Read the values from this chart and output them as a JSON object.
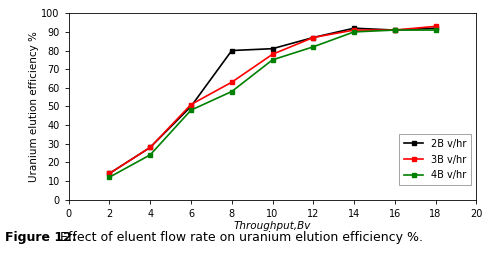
{
  "x": [
    2,
    4,
    6,
    8,
    10,
    12,
    14,
    16,
    18
  ],
  "series": [
    {
      "label": "2B v/hr",
      "color": "#000000",
      "y": [
        14,
        28,
        50,
        80,
        81,
        87,
        92,
        91,
        92
      ]
    },
    {
      "label": "3B v/hr",
      "color": "#ff0000",
      "y": [
        14,
        28,
        51,
        63,
        78,
        87,
        91,
        91,
        93
      ]
    },
    {
      "label": "4B v/hr",
      "color": "#008000",
      "y": [
        12,
        24,
        48,
        58,
        75,
        82,
        90,
        91,
        91
      ]
    }
  ],
  "xlabel": "Throughput,Bv",
  "ylabel": "Uranium elution efficiency %",
  "xlim": [
    0,
    20
  ],
  "ylim": [
    0,
    100
  ],
  "xticks": [
    0,
    2,
    4,
    6,
    8,
    10,
    12,
    14,
    16,
    18,
    20
  ],
  "yticks": [
    0,
    10,
    20,
    30,
    40,
    50,
    60,
    70,
    80,
    90,
    100
  ],
  "caption_bold": "Figure 12:",
  "caption_rest": " Effect of eluent flow rate on uranium elution efficiency %.",
  "marker": "s",
  "markersize": 3.5,
  "linewidth": 1.2,
  "axis_label_fontsize": 7.5,
  "tick_fontsize": 7,
  "legend_fontsize": 7,
  "caption_fontsize": 9,
  "background_color": "#ffffff"
}
